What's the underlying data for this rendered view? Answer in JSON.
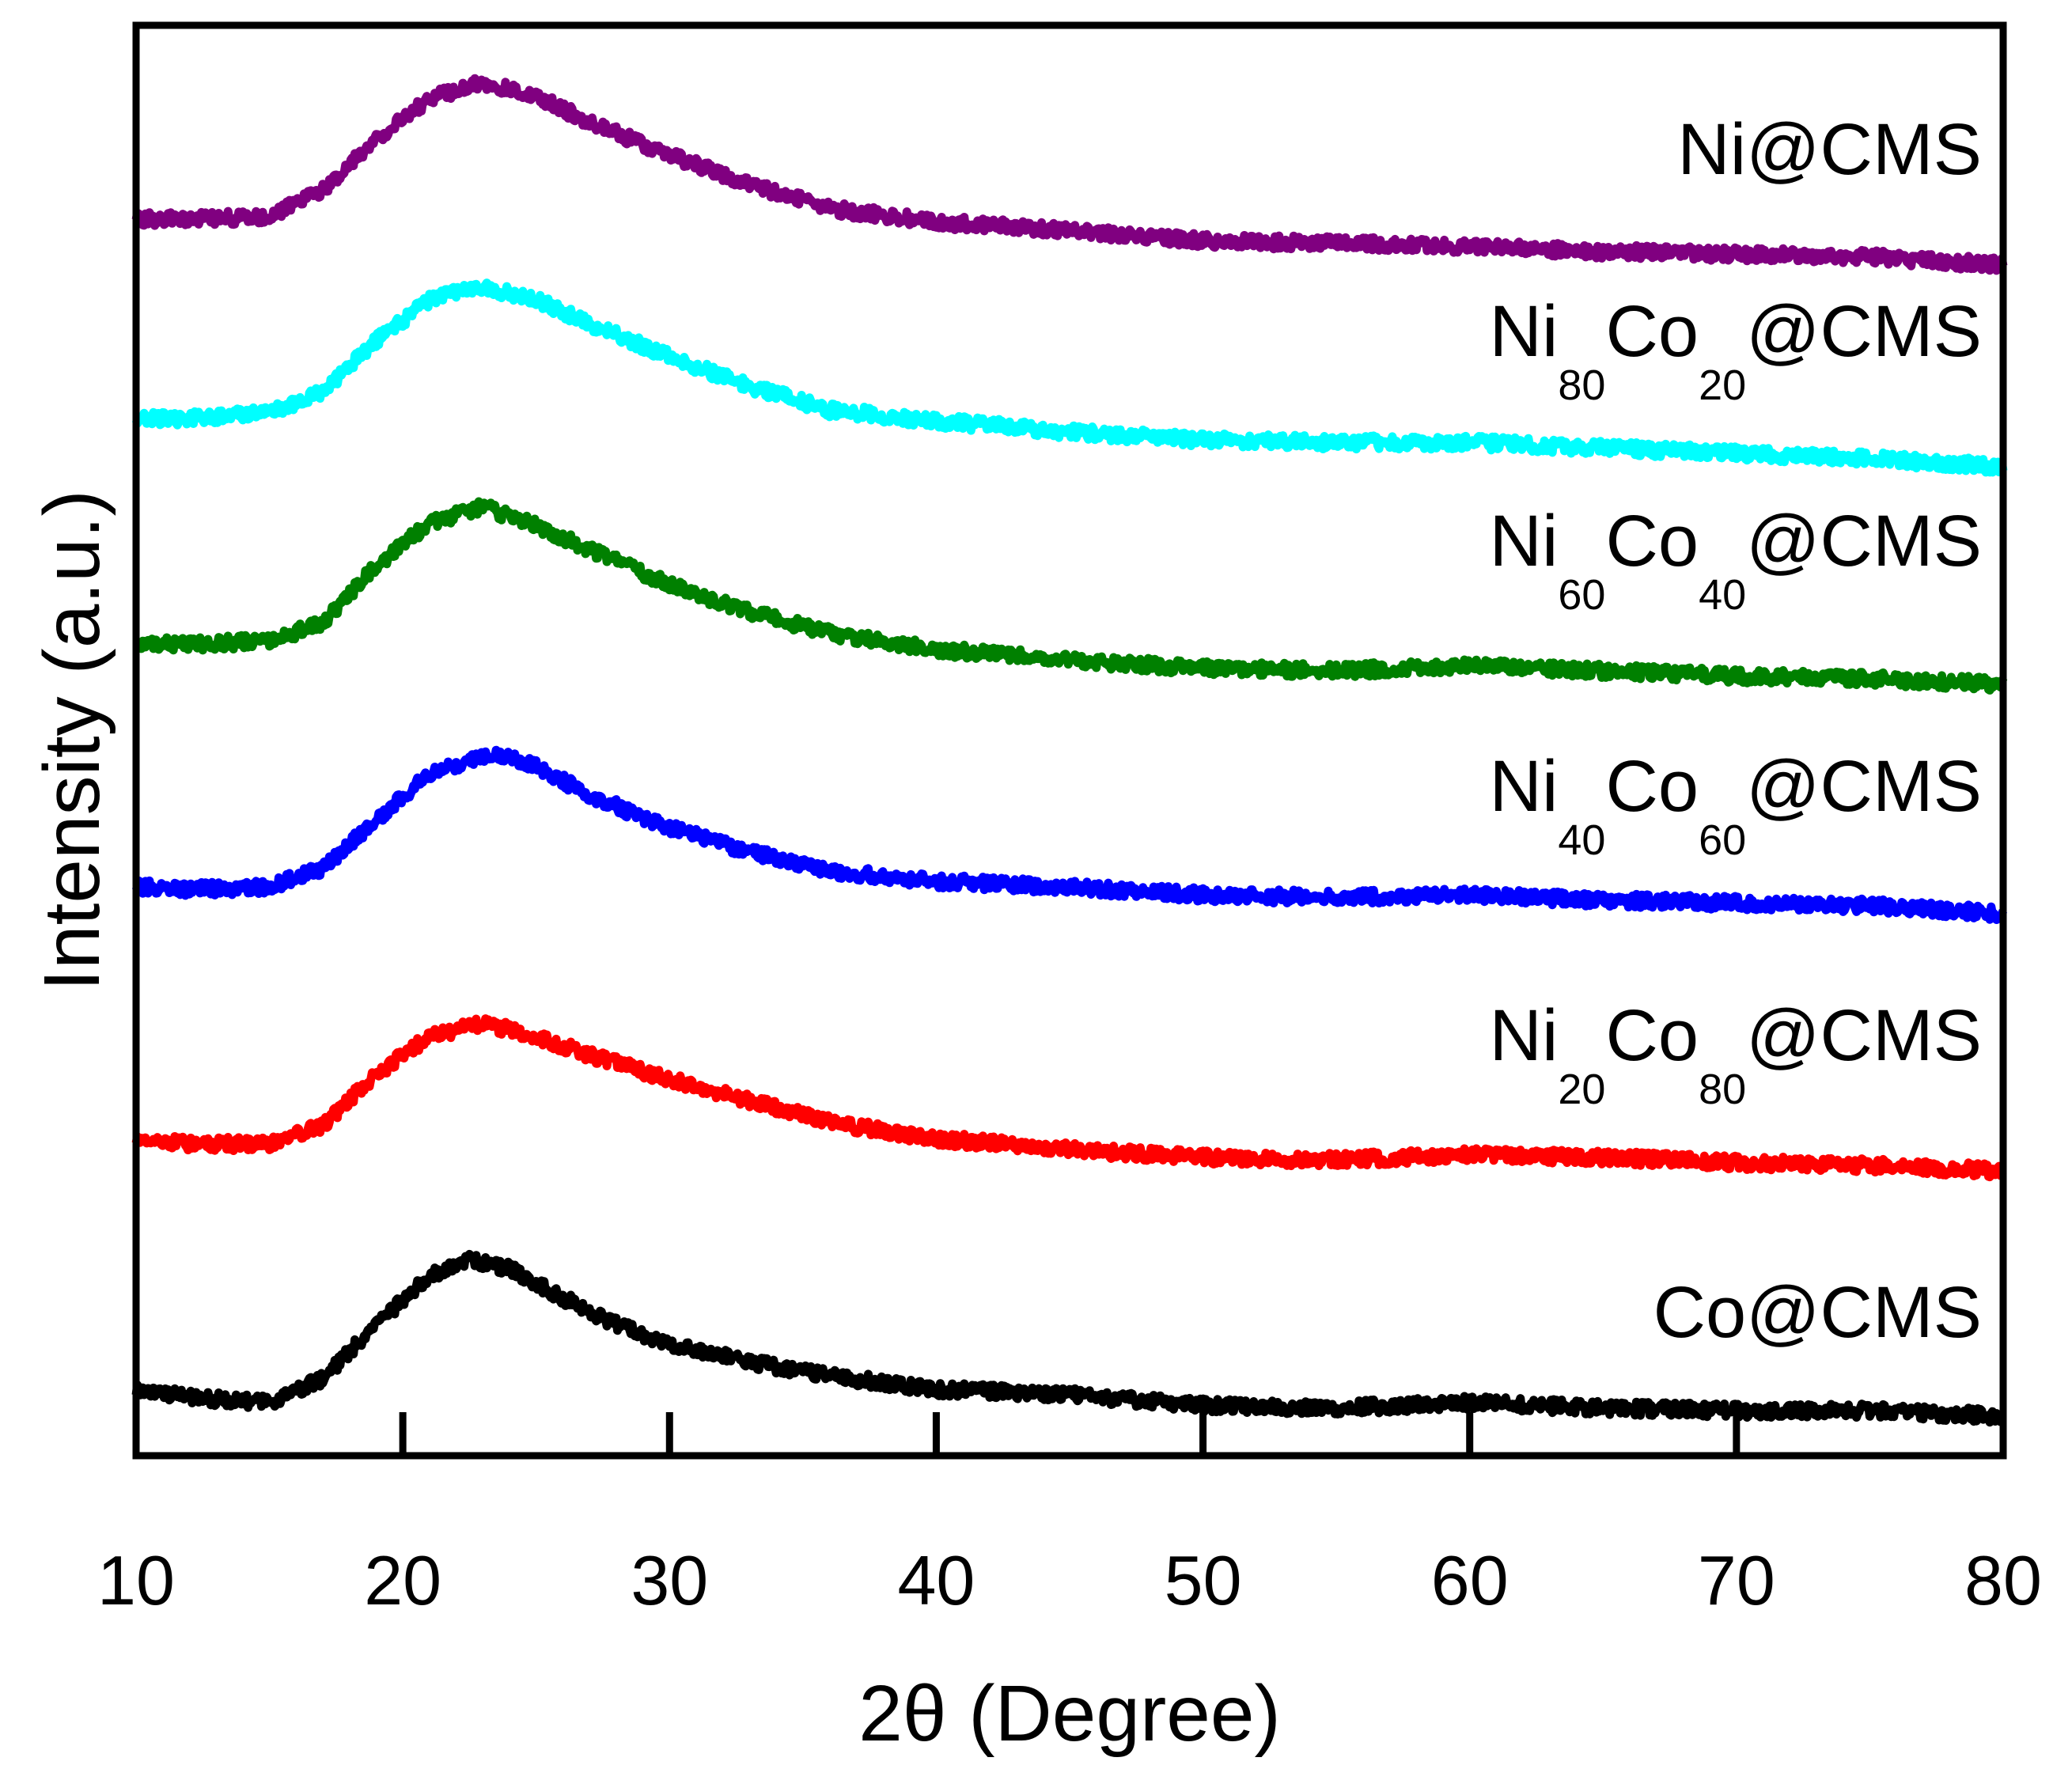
{
  "chart_data": {
    "type": "line",
    "title": "",
    "xlabel": "2θ (Degree)",
    "ylabel": "Intensity (a.u.)",
    "xlim": [
      10,
      80
    ],
    "x_ticks": [
      "10",
      "20",
      "30",
      "40",
      "50",
      "60",
      "70",
      "80"
    ],
    "y_ticks": [],
    "legend": "inline labels at right end of each curve",
    "series": [
      {
        "name": "Co@CMS",
        "label_parts": [
          "Co@CMS"
        ],
        "color": "#000000",
        "offset": 0,
        "points": [
          [
            10,
            0.1
          ],
          [
            12,
            0.07
          ],
          [
            15,
            0.05
          ],
          [
            17,
            0.14
          ],
          [
            19,
            0.34
          ],
          [
            21,
            0.52
          ],
          [
            22.5,
            0.58
          ],
          [
            24,
            0.55
          ],
          [
            26,
            0.44
          ],
          [
            28,
            0.34
          ],
          [
            30,
            0.27
          ],
          [
            33,
            0.2
          ],
          [
            36,
            0.15
          ],
          [
            40,
            0.1
          ],
          [
            45,
            0.08
          ],
          [
            50,
            0.04
          ],
          [
            55,
            0.03
          ],
          [
            60,
            0.05
          ],
          [
            65,
            0.03
          ],
          [
            70,
            0.02
          ],
          [
            75,
            0.02
          ],
          [
            80,
            0.0
          ]
        ]
      },
      {
        "name": "Ni20Co80@CMS",
        "label_parts": [
          "Ni",
          "20",
          "Co",
          "80",
          "@CMS"
        ],
        "color": "#ff0000",
        "offset": 1,
        "points": [
          [
            10,
            0.12
          ],
          [
            12,
            0.1
          ],
          [
            15,
            0.1
          ],
          [
            17,
            0.17
          ],
          [
            19,
            0.36
          ],
          [
            21,
            0.5
          ],
          [
            23,
            0.55
          ],
          [
            25,
            0.5
          ],
          [
            27,
            0.43
          ],
          [
            30,
            0.34
          ],
          [
            33,
            0.26
          ],
          [
            36,
            0.18
          ],
          [
            40,
            0.12
          ],
          [
            45,
            0.08
          ],
          [
            50,
            0.05
          ],
          [
            55,
            0.04
          ],
          [
            60,
            0.06
          ],
          [
            65,
            0.05
          ],
          [
            70,
            0.03
          ],
          [
            75,
            0.02
          ],
          [
            80,
            0.0
          ]
        ]
      },
      {
        "name": "Ni40Co60@CMS",
        "label_parts": [
          "Ni",
          "40",
          "Co",
          "60",
          "@CMS"
        ],
        "color": "#0000ff",
        "offset": 2,
        "points": [
          [
            10,
            0.1
          ],
          [
            12,
            0.09
          ],
          [
            15,
            0.1
          ],
          [
            17,
            0.17
          ],
          [
            19,
            0.35
          ],
          [
            21,
            0.52
          ],
          [
            23.5,
            0.6
          ],
          [
            25,
            0.55
          ],
          [
            27,
            0.44
          ],
          [
            30,
            0.32
          ],
          [
            33,
            0.23
          ],
          [
            36,
            0.16
          ],
          [
            40,
            0.12
          ],
          [
            45,
            0.1
          ],
          [
            50,
            0.07
          ],
          [
            55,
            0.06
          ],
          [
            60,
            0.07
          ],
          [
            65,
            0.05
          ],
          [
            70,
            0.04
          ],
          [
            75,
            0.03
          ],
          [
            80,
            0.0
          ]
        ]
      },
      {
        "name": "Ni60Co40@CMS",
        "label_parts": [
          "Ni",
          "60",
          "Co",
          "40",
          "@CMS"
        ],
        "color": "#008000",
        "offset": 3,
        "points": [
          [
            10,
            0.15
          ],
          [
            12,
            0.15
          ],
          [
            15,
            0.16
          ],
          [
            17,
            0.23
          ],
          [
            19,
            0.44
          ],
          [
            21,
            0.6
          ],
          [
            23,
            0.66
          ],
          [
            25,
            0.59
          ],
          [
            27,
            0.5
          ],
          [
            30,
            0.37
          ],
          [
            33,
            0.27
          ],
          [
            36,
            0.19
          ],
          [
            40,
            0.13
          ],
          [
            45,
            0.09
          ],
          [
            50,
            0.06
          ],
          [
            55,
            0.05
          ],
          [
            60,
            0.07
          ],
          [
            65,
            0.05
          ],
          [
            70,
            0.03
          ],
          [
            75,
            0.02
          ],
          [
            80,
            0.0
          ]
        ]
      },
      {
        "name": "Ni80Co20@CMS",
        "label_parts": [
          "Ni",
          "80",
          "Co",
          "20",
          "@CMS"
        ],
        "color": "#00ffff",
        "offset": 4,
        "points": [
          [
            10,
            0.18
          ],
          [
            12,
            0.18
          ],
          [
            15,
            0.2
          ],
          [
            17,
            0.28
          ],
          [
            19,
            0.47
          ],
          [
            21,
            0.62
          ],
          [
            23,
            0.67
          ],
          [
            25,
            0.62
          ],
          [
            27,
            0.53
          ],
          [
            30,
            0.41
          ],
          [
            33,
            0.3
          ],
          [
            36,
            0.21
          ],
          [
            40,
            0.17
          ],
          [
            45,
            0.13
          ],
          [
            50,
            0.1
          ],
          [
            55,
            0.09
          ],
          [
            60,
            0.09
          ],
          [
            65,
            0.07
          ],
          [
            70,
            0.05
          ],
          [
            75,
            0.03
          ],
          [
            80,
            0.0
          ]
        ]
      },
      {
        "name": "Ni@CMS",
        "label_parts": [
          "Ni@CMS"
        ],
        "color": "#800080",
        "offset": 5,
        "points": [
          [
            10,
            0.17
          ],
          [
            12,
            0.17
          ],
          [
            15,
            0.18
          ],
          [
            17,
            0.28
          ],
          [
            19,
            0.47
          ],
          [
            21,
            0.62
          ],
          [
            23,
            0.68
          ],
          [
            25,
            0.63
          ],
          [
            27,
            0.53
          ],
          [
            30,
            0.41
          ],
          [
            33,
            0.3
          ],
          [
            36,
            0.21
          ],
          [
            40,
            0.16
          ],
          [
            45,
            0.13
          ],
          [
            50,
            0.09
          ],
          [
            55,
            0.08
          ],
          [
            60,
            0.07
          ],
          [
            65,
            0.05
          ],
          [
            70,
            0.04
          ],
          [
            75,
            0.03
          ],
          [
            80,
            0.0
          ]
        ]
      }
    ]
  }
}
